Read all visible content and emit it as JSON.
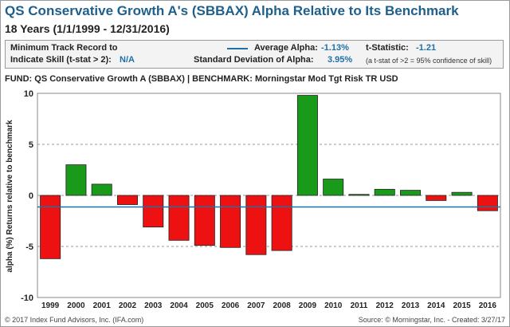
{
  "header": {
    "title": "QS Conservative Growth A's (SBBAX) Alpha Relative to Its Benchmark",
    "subtitle": "18 Years (1/1/1999 - 12/31/2016)"
  },
  "stats": {
    "min_track_label_1": "Minimum Track Record to",
    "min_track_label_2": "Indicate Skill (t-stat > 2):",
    "min_track_value": "N/A",
    "avg_alpha_label": "Average Alpha:",
    "avg_alpha_value": "-1.13%",
    "tstat_label": "t-Statistic:",
    "tstat_value": "-1.21",
    "std_label": "Standard Deviation of Alpha:",
    "std_value": "3.95%",
    "tstat_note": "(a t-stat of >2 = 95% confidence of skill)"
  },
  "fund_line": "FUND: QS Conservative Growth A (SBBAX)  | BENCHMARK: Morningstar Mod Tgt Risk TR USD",
  "footer": {
    "left": "© 2017 Index Fund Advisors, Inc. (IFA.com)",
    "right": "Source: © Morningstar, Inc. - Created: 3/27/17"
  },
  "colors": {
    "positive": "#1a9a1a",
    "negative": "#ee1111",
    "average_line": "#1f6fa8",
    "title": "#1f5f8b"
  },
  "chart_data": {
    "type": "bar",
    "categories": [
      "1999",
      "2000",
      "2001",
      "2002",
      "2003",
      "2004",
      "2005",
      "2006",
      "2007",
      "2008",
      "2009",
      "2010",
      "2011",
      "2012",
      "2013",
      "2014",
      "2015",
      "2016"
    ],
    "values": [
      -6.2,
      3.0,
      1.1,
      -0.9,
      -3.1,
      -4.4,
      -4.9,
      -5.1,
      -5.8,
      -5.4,
      9.8,
      1.6,
      0.1,
      0.6,
      0.5,
      -0.5,
      0.3,
      -1.5
    ],
    "average": -1.13,
    "ylabel": "alpha (%) Returns relative to benchmark",
    "xlabel": "",
    "ylim": [
      -10,
      10
    ],
    "yticks": [
      -10,
      -5,
      0,
      5,
      10
    ],
    "grid": "dashed horizontal at -5, 0, 5"
  }
}
